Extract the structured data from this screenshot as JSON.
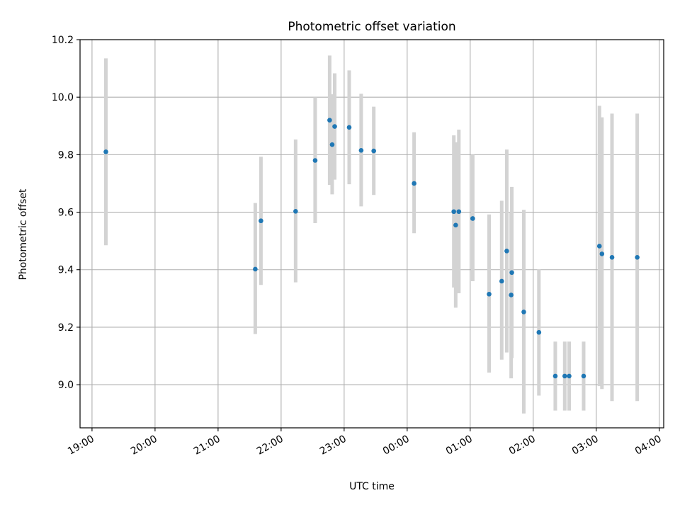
{
  "chart_data": {
    "type": "scatter",
    "title": "Photometric offset variation",
    "xlabel": "UTC time",
    "ylabel": "Photometric offset",
    "x_unit": "hours since 19:00 UTC",
    "xlim": [
      -0.19,
      9.07
    ],
    "ylim": [
      8.85,
      10.2
    ],
    "x_ticks": [
      {
        "value": 0,
        "label": "19:00"
      },
      {
        "value": 1,
        "label": "20:00"
      },
      {
        "value": 2,
        "label": "21:00"
      },
      {
        "value": 3,
        "label": "22:00"
      },
      {
        "value": 4,
        "label": "23:00"
      },
      {
        "value": 5,
        "label": "00:00"
      },
      {
        "value": 6,
        "label": "01:00"
      },
      {
        "value": 7,
        "label": "02:00"
      },
      {
        "value": 8,
        "label": "03:00"
      },
      {
        "value": 9,
        "label": "04:00"
      }
    ],
    "y_ticks": [
      {
        "value": 9.0,
        "label": "9.0"
      },
      {
        "value": 9.2,
        "label": "9.2"
      },
      {
        "value": 9.4,
        "label": "9.4"
      },
      {
        "value": 9.6,
        "label": "9.6"
      },
      {
        "value": 9.8,
        "label": "9.8"
      },
      {
        "value": 10.0,
        "label": "10.0"
      },
      {
        "value": 10.2,
        "label": "10.2"
      }
    ],
    "grid": true,
    "colors": {
      "point": "#1f77b4",
      "errorbar": "#d3d3d3",
      "grid": "#b0b0b0"
    },
    "points": [
      {
        "x": 0.22,
        "y": 9.81,
        "ylow": 9.485,
        "yhigh": 10.135
      },
      {
        "x": 2.59,
        "y": 9.402,
        "ylow": 9.176,
        "yhigh": 9.632
      },
      {
        "x": 2.68,
        "y": 9.57,
        "ylow": 9.347,
        "yhigh": 9.793
      },
      {
        "x": 3.23,
        "y": 9.603,
        "ylow": 9.356,
        "yhigh": 9.853
      },
      {
        "x": 3.54,
        "y": 9.78,
        "ylow": 9.562,
        "yhigh": 10.0
      },
      {
        "x": 3.77,
        "y": 9.92,
        "ylow": 9.695,
        "yhigh": 10.145
      },
      {
        "x": 3.81,
        "y": 9.835,
        "ylow": 9.662,
        "yhigh": 10.01
      },
      {
        "x": 3.85,
        "y": 9.898,
        "ylow": 9.713,
        "yhigh": 10.083
      },
      {
        "x": 4.08,
        "y": 9.895,
        "ylow": 9.697,
        "yhigh": 10.093
      },
      {
        "x": 4.27,
        "y": 9.815,
        "ylow": 9.62,
        "yhigh": 10.012
      },
      {
        "x": 4.47,
        "y": 9.813,
        "ylow": 9.66,
        "yhigh": 9.967
      },
      {
        "x": 5.11,
        "y": 9.7,
        "ylow": 9.527,
        "yhigh": 9.878
      },
      {
        "x": 5.74,
        "y": 9.602,
        "ylow": 9.338,
        "yhigh": 9.867
      },
      {
        "x": 5.77,
        "y": 9.555,
        "ylow": 9.268,
        "yhigh": 9.843
      },
      {
        "x": 5.82,
        "y": 9.602,
        "ylow": 9.318,
        "yhigh": 9.887
      },
      {
        "x": 6.04,
        "y": 9.578,
        "ylow": 9.36,
        "yhigh": 9.8
      },
      {
        "x": 6.3,
        "y": 9.315,
        "ylow": 9.042,
        "yhigh": 9.592
      },
      {
        "x": 6.5,
        "y": 9.36,
        "ylow": 9.087,
        "yhigh": 9.64
      },
      {
        "x": 6.58,
        "y": 9.465,
        "ylow": 9.112,
        "yhigh": 9.818
      },
      {
        "x": 6.65,
        "y": 9.312,
        "ylow": 9.022,
        "yhigh": 9.598
      },
      {
        "x": 6.66,
        "y": 9.39,
        "ylow": 9.093,
        "yhigh": 9.688
      },
      {
        "x": 6.85,
        "y": 9.253,
        "ylow": 8.9,
        "yhigh": 9.608
      },
      {
        "x": 7.09,
        "y": 9.182,
        "ylow": 8.962,
        "yhigh": 9.402
      },
      {
        "x": 7.35,
        "y": 9.03,
        "ylow": 8.91,
        "yhigh": 9.15
      },
      {
        "x": 7.5,
        "y": 9.03,
        "ylow": 8.91,
        "yhigh": 9.15
      },
      {
        "x": 7.57,
        "y": 9.03,
        "ylow": 8.91,
        "yhigh": 9.15
      },
      {
        "x": 7.8,
        "y": 9.03,
        "ylow": 8.91,
        "yhigh": 9.15
      },
      {
        "x": 8.05,
        "y": 9.482,
        "ylow": 8.995,
        "yhigh": 9.97
      },
      {
        "x": 8.09,
        "y": 9.455,
        "ylow": 8.985,
        "yhigh": 9.93
      },
      {
        "x": 8.25,
        "y": 9.443,
        "ylow": 8.943,
        "yhigh": 9.943
      },
      {
        "x": 8.65,
        "y": 9.443,
        "ylow": 8.943,
        "yhigh": 9.943
      }
    ]
  }
}
